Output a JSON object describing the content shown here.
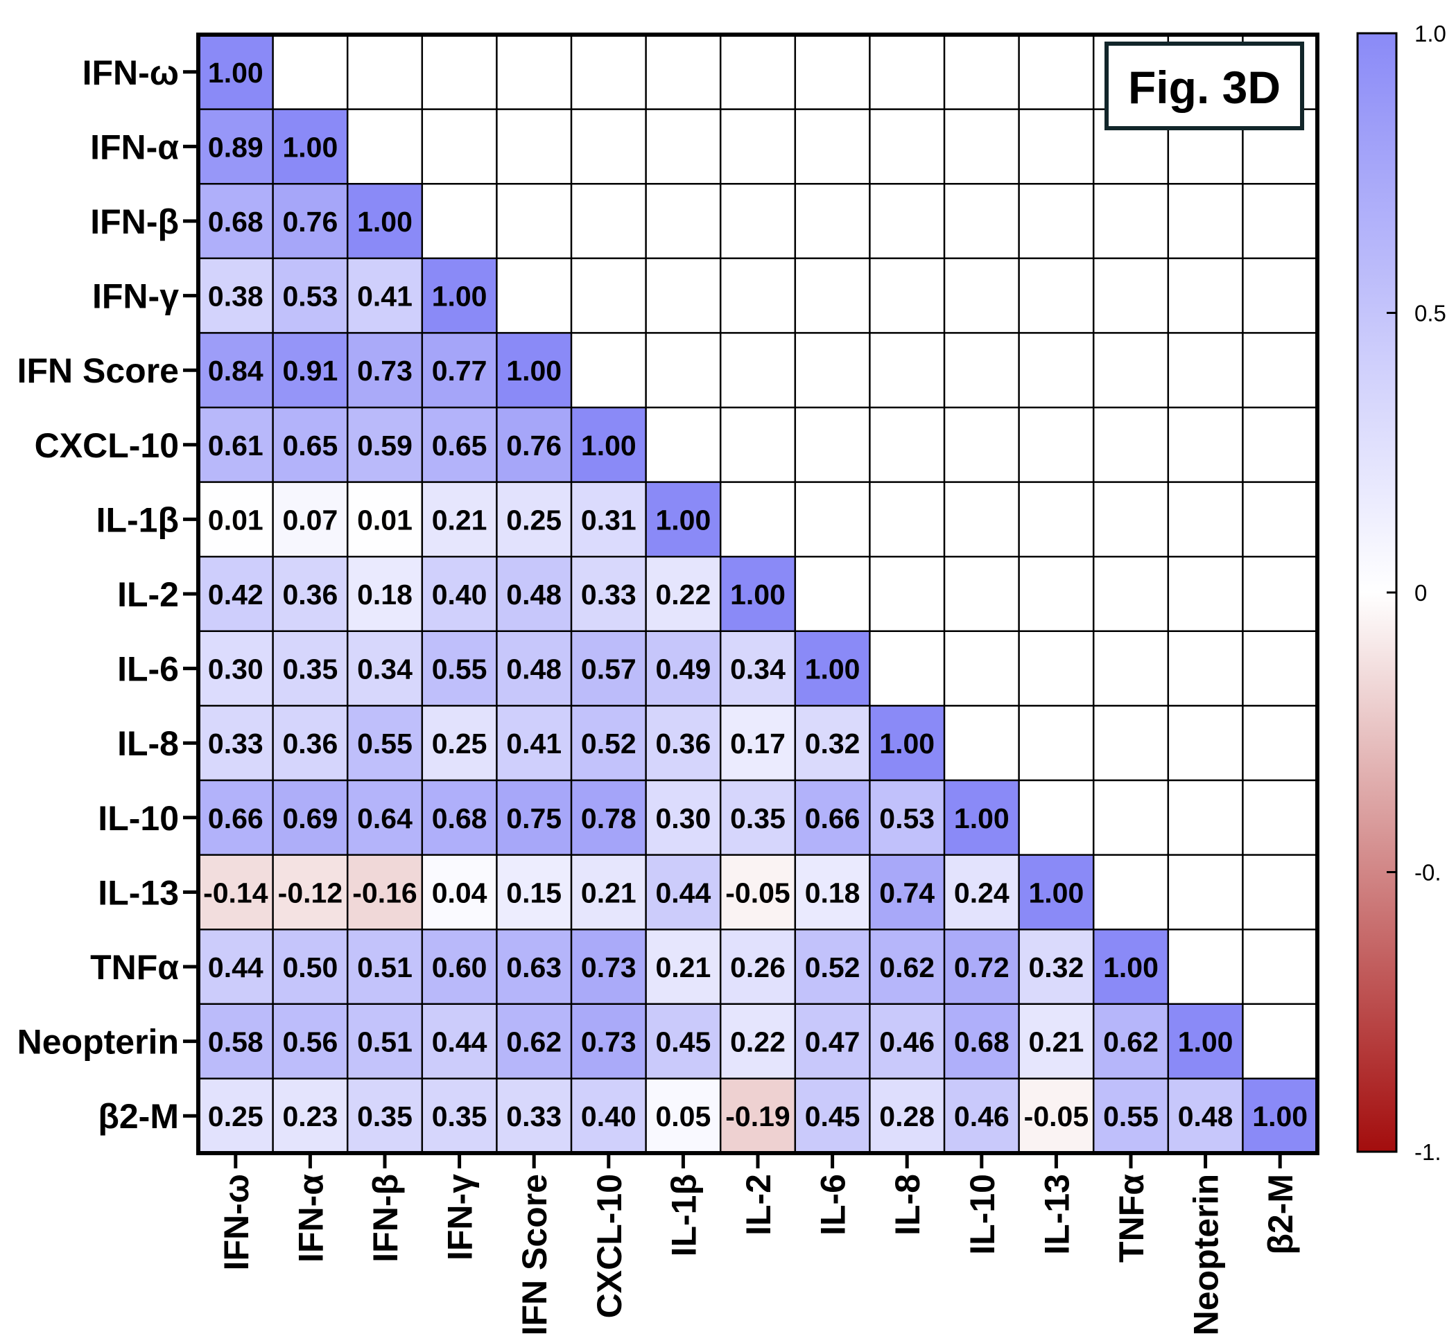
{
  "chart_data": {
    "type": "heatmap",
    "title": "",
    "badge": "Fig. 3D",
    "row_labels": [
      "IFN-ω",
      "IFN-α",
      "IFN-β",
      "IFN-γ",
      "IFN Score",
      "CXCL-10",
      "IL-1β",
      "IL-2",
      "IL-6",
      "IL-8",
      "IL-10",
      "IL-13",
      "TNFα",
      "Neopterin",
      "β2-M"
    ],
    "col_labels": [
      "IFN-ω",
      "IFN-α",
      "IFN-β",
      "IFN-γ",
      "IFN Score",
      "CXCL-10",
      "IL-1β",
      "IL-2",
      "IL-6",
      "IL-8",
      "IL-10",
      "IL-13",
      "TNFα",
      "Neopterin",
      "β2-M"
    ],
    "values": [
      [
        1.0
      ],
      [
        0.89,
        1.0
      ],
      [
        0.68,
        0.76,
        1.0
      ],
      [
        0.38,
        0.53,
        0.41,
        1.0
      ],
      [
        0.84,
        0.91,
        0.73,
        0.77,
        1.0
      ],
      [
        0.61,
        0.65,
        0.59,
        0.65,
        0.76,
        1.0
      ],
      [
        0.01,
        0.07,
        0.01,
        0.21,
        0.25,
        0.31,
        1.0
      ],
      [
        0.42,
        0.36,
        0.18,
        0.4,
        0.48,
        0.33,
        0.22,
        1.0
      ],
      [
        0.3,
        0.35,
        0.34,
        0.55,
        0.48,
        0.57,
        0.49,
        0.34,
        1.0
      ],
      [
        0.33,
        0.36,
        0.55,
        0.25,
        0.41,
        0.52,
        0.36,
        0.17,
        0.32,
        1.0
      ],
      [
        0.66,
        0.69,
        0.64,
        0.68,
        0.75,
        0.78,
        0.3,
        0.35,
        0.66,
        0.53,
        1.0
      ],
      [
        -0.14,
        -0.12,
        -0.16,
        0.04,
        0.15,
        0.21,
        0.44,
        -0.05,
        0.18,
        0.74,
        0.24,
        1.0
      ],
      [
        0.44,
        0.5,
        0.51,
        0.6,
        0.63,
        0.73,
        0.21,
        0.26,
        0.52,
        0.62,
        0.72,
        0.32,
        1.0
      ],
      [
        0.58,
        0.56,
        0.51,
        0.44,
        0.62,
        0.73,
        0.45,
        0.22,
        0.47,
        0.46,
        0.68,
        0.21,
        0.62,
        1.0
      ],
      [
        0.25,
        0.23,
        0.35,
        0.35,
        0.33,
        0.4,
        0.05,
        -0.19,
        0.45,
        0.28,
        0.46,
        -0.05,
        0.55,
        0.48,
        1.0
      ]
    ],
    "color_scale": {
      "min": -1.0,
      "max": 1.0,
      "min_color": "#a30d0d",
      "mid_color": "#ffffff",
      "max_color": "#8a8af7",
      "ticks": [
        "1.0",
        "0.5",
        "0",
        "-0.",
        "-1."
      ]
    },
    "legend_placement": "right",
    "grid": true
  }
}
